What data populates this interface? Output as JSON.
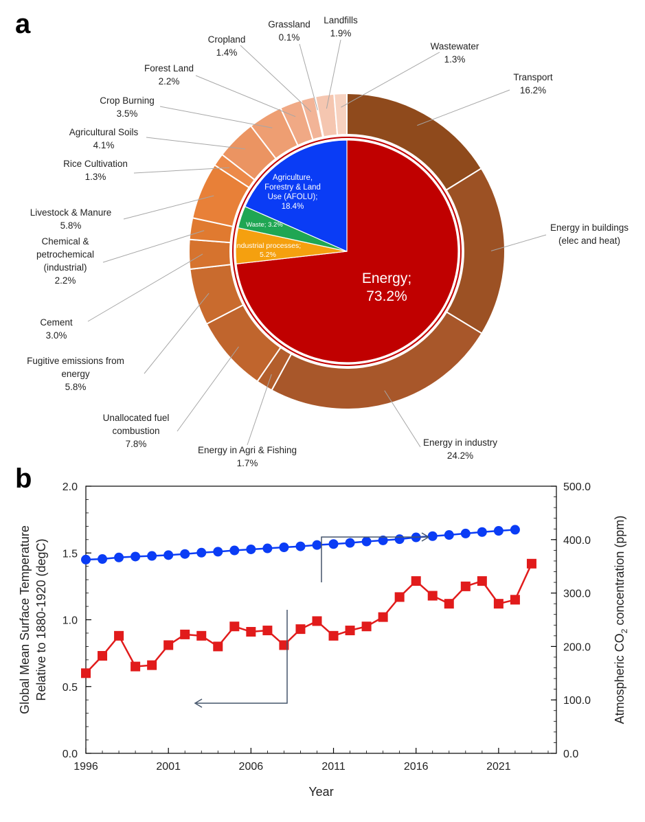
{
  "panel_a_label": "a",
  "panel_b_label": "b",
  "chart_data": [
    {
      "type": "pie",
      "inner": {
        "slices": [
          {
            "name": "Energy",
            "label_lines": [
              "Energy;",
              "73.2%"
            ],
            "value": 73.2,
            "color": "#c00000"
          },
          {
            "name": "Industrial processes",
            "label_lines": [
              "Industrial processes;",
              "5.2%"
            ],
            "value": 5.2,
            "color": "#f5a00f"
          },
          {
            "name": "Waste",
            "label_lines": [
              "Waste; 3.2%"
            ],
            "value": 3.2,
            "color": "#1fa653"
          },
          {
            "name": "Agriculture, Forestry & Land Use (AFOLU)",
            "label_lines": [
              "Agriculture,",
              "Forestry & Land",
              "Use (AFOLU);",
              "18.4%"
            ],
            "value": 18.4,
            "color": "#0a3cf5"
          }
        ]
      },
      "outer": {
        "slices": [
          {
            "label_lines": [
              "Transport",
              "16.2%"
            ],
            "value": 16.2,
            "color": "#8f4a1c"
          },
          {
            "label_lines": [
              "Energy in buildings",
              "(elec and heat)"
            ],
            "value": 17.5,
            "color": "#9c5124"
          },
          {
            "label_lines": [
              "Energy in industry",
              "24.2%"
            ],
            "value": 24.2,
            "color": "#a8572a"
          },
          {
            "label_lines": [
              "Energy in Agri & Fishing",
              "1.7%"
            ],
            "value": 1.7,
            "color": "#b35e2c"
          },
          {
            "label_lines": [
              "Unallocated fuel",
              "combustion",
              "7.8%"
            ],
            "value": 7.8,
            "color": "#c0652d"
          },
          {
            "label_lines": [
              "Fugitive emissions from",
              "energy",
              "5.8%"
            ],
            "value": 5.8,
            "color": "#c96b2e"
          },
          {
            "label_lines": [
              "Cement",
              "3.0%"
            ],
            "value": 3.0,
            "color": "#d6732e"
          },
          {
            "label_lines": [
              "Chemical &",
              "petrochemical",
              "(industrial)",
              "2.2%"
            ],
            "value": 2.2,
            "color": "#e07a30"
          },
          {
            "label_lines": [
              "Livestock & Manure",
              "5.8%"
            ],
            "value": 5.8,
            "color": "#e88038"
          },
          {
            "label_lines": [
              "Rice Cultivation",
              "1.3%"
            ],
            "value": 1.3,
            "color": "#ec8a4a"
          },
          {
            "label_lines": [
              "Agricultural Soils",
              "4.1%"
            ],
            "value": 4.1,
            "color": "#eb9462"
          },
          {
            "label_lines": [
              "Crop Burning",
              "3.5%"
            ],
            "value": 3.5,
            "color": "#ee9e72"
          },
          {
            "label_lines": [
              "Forest Land",
              "2.2%"
            ],
            "value": 2.2,
            "color": "#f0a985"
          },
          {
            "label_lines": [
              "Cropland",
              "1.4%"
            ],
            "value": 1.4,
            "color": "#f2b497"
          },
          {
            "label_lines": [
              "Grassland",
              "0.1%"
            ],
            "value": 0.1,
            "color": "#f3bda3"
          },
          {
            "label_lines": [
              "Landfills",
              "1.9%"
            ],
            "value": 1.9,
            "color": "#f5c6b0"
          },
          {
            "label_lines": [
              "Wastewater",
              "1.3%"
            ],
            "value": 1.3,
            "color": "#f7d2c0"
          }
        ]
      }
    },
    {
      "type": "line",
      "xlabel": "Year",
      "ylabel_left": [
        "Global Mean Surface Temperature",
        "Relative to 1880-1920 (degC)"
      ],
      "ylabel_right": [
        "Atmospheric CO",
        "2",
        " concentration (ppm)"
      ],
      "xlim": [
        1996,
        2024.5
      ],
      "xticks": [
        1996,
        2001,
        2006,
        2011,
        2016,
        2021
      ],
      "ylim_left": [
        0,
        2
      ],
      "yticks_left": [
        "0.0",
        "0.5",
        "1.0",
        "1.5",
        "2.0"
      ],
      "ylim_right": [
        0,
        500
      ],
      "yticks_right": [
        "0.0",
        "100.0",
        "200.0",
        "300.0",
        "400.0",
        "500.0"
      ],
      "series": [
        {
          "axis": "right",
          "color": "#0a3cf5",
          "marker": "circle",
          "x": [
            1996,
            1997,
            1998,
            1999,
            2000,
            2001,
            2002,
            2003,
            2004,
            2005,
            2006,
            2007,
            2008,
            2009,
            2010,
            2011,
            2012,
            2013,
            2014,
            2015,
            2016,
            2017,
            2018,
            2019,
            2020,
            2021,
            2022
          ],
          "values": [
            362.6,
            363.7,
            366.6,
            368.3,
            369.5,
            371.0,
            373.1,
            375.6,
            377.4,
            379.8,
            381.8,
            383.6,
            385.6,
            387.4,
            389.9,
            391.7,
            393.9,
            396.5,
            398.6,
            400.8,
            404.2,
            406.5,
            408.7,
            411.4,
            414.2,
            416.4,
            418.5
          ]
        },
        {
          "axis": "left",
          "color": "#e11b1b",
          "marker": "square",
          "x": [
            1996,
            1997,
            1998,
            1999,
            2000,
            2001,
            2002,
            2003,
            2004,
            2005,
            2006,
            2007,
            2008,
            2009,
            2010,
            2011,
            2012,
            2013,
            2014,
            2015,
            2016,
            2017,
            2018,
            2019,
            2020,
            2021,
            2022,
            2023
          ],
          "values": [
            0.6,
            0.73,
            0.88,
            0.65,
            0.66,
            0.81,
            0.89,
            0.88,
            0.8,
            0.95,
            0.91,
            0.92,
            0.81,
            0.93,
            0.99,
            0.88,
            0.92,
            0.95,
            1.02,
            1.17,
            1.29,
            1.18,
            1.12,
            1.25,
            1.29,
            1.12,
            1.15,
            1.42
          ]
        }
      ]
    }
  ]
}
